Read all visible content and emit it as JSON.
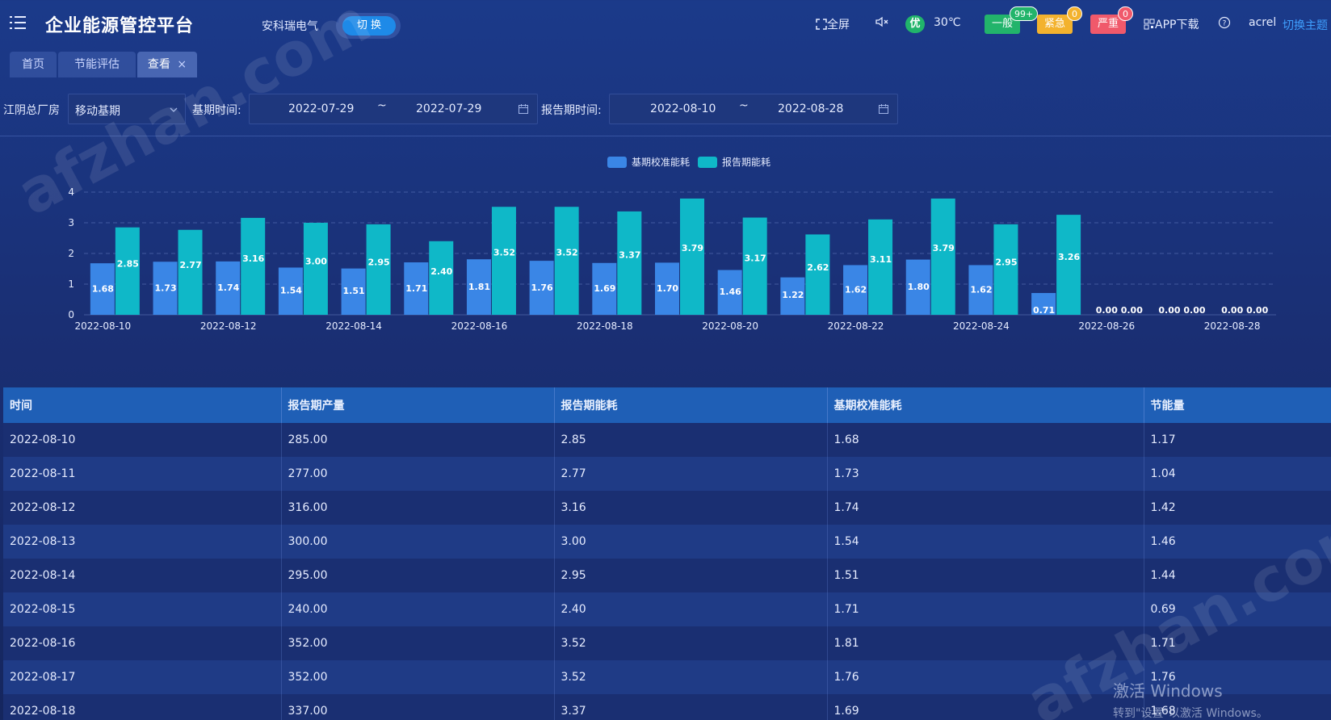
{
  "header": {
    "app_title": "企业能源管控平台",
    "company": "安科瑞电气",
    "switch_label": "切 换",
    "fullscreen_label": "全屏",
    "air_quality": "优",
    "temperature": "30℃",
    "alarms": [
      {
        "label": "一般",
        "count": "99+",
        "color": "#22b46b"
      },
      {
        "label": "紧急",
        "count": "0",
        "color": "#f3b22e"
      },
      {
        "label": "严重",
        "count": "0",
        "color": "#f0596b"
      }
    ],
    "app_download": "APP下载",
    "username": "acrel",
    "theme_switch": "切换主题"
  },
  "tabs": [
    {
      "label": "首页"
    },
    {
      "label": "节能评估"
    },
    {
      "label": "查看",
      "close": "×"
    }
  ],
  "filters": {
    "site_label": "江阴总厂房",
    "mode_value": "移动基期",
    "baseline_label": "基期时间:",
    "baseline_start": "2022-07-29",
    "baseline_end": "2022-07-29",
    "separator": "~",
    "report_label": "报告期时间:",
    "report_start": "2022-08-10",
    "report_end": "2022-08-28"
  },
  "chart_data": {
    "type": "bar",
    "legend_position": "top-center",
    "ylim": [
      0,
      4
    ],
    "yticks": [
      0,
      1,
      2,
      3,
      4
    ],
    "categories": [
      "2022-08-10",
      "2022-08-11",
      "2022-08-12",
      "2022-08-13",
      "2022-08-14",
      "2022-08-15",
      "2022-08-16",
      "2022-08-17",
      "2022-08-18",
      "2022-08-19",
      "2022-08-20",
      "2022-08-21",
      "2022-08-22",
      "2022-08-23",
      "2022-08-24",
      "2022-08-25",
      "2022-08-26",
      "2022-08-27",
      "2022-08-28"
    ],
    "xtick_labels": [
      "2022-08-10",
      "2022-08-12",
      "2022-08-14",
      "2022-08-16",
      "2022-08-18",
      "2022-08-20",
      "2022-08-22",
      "2022-08-24",
      "2022-08-26",
      "2022-08-28"
    ],
    "series": [
      {
        "name": "基期校准能耗",
        "color": "#3a86e6",
        "values": [
          1.68,
          1.73,
          1.74,
          1.54,
          1.51,
          1.71,
          1.81,
          1.76,
          1.69,
          1.7,
          1.46,
          1.22,
          1.62,
          1.8,
          1.62,
          0.71,
          0.0,
          0.0,
          0.0
        ]
      },
      {
        "name": "报告期能耗",
        "color": "#0fb8c8",
        "values": [
          2.85,
          2.77,
          3.16,
          3.0,
          2.95,
          2.4,
          3.52,
          3.52,
          3.37,
          3.79,
          3.17,
          2.62,
          3.11,
          3.79,
          2.95,
          3.26,
          0.0,
          0.0,
          0.0
        ]
      }
    ]
  },
  "table": {
    "columns": [
      "时间",
      "报告期产量",
      "报告期能耗",
      "基期校准能耗",
      "节能量"
    ],
    "rows": [
      [
        "2022-08-10",
        "285.00",
        "2.85",
        "1.68",
        "1.17"
      ],
      [
        "2022-08-11",
        "277.00",
        "2.77",
        "1.73",
        "1.04"
      ],
      [
        "2022-08-12",
        "316.00",
        "3.16",
        "1.74",
        "1.42"
      ],
      [
        "2022-08-13",
        "300.00",
        "3.00",
        "1.54",
        "1.46"
      ],
      [
        "2022-08-14",
        "295.00",
        "2.95",
        "1.51",
        "1.44"
      ],
      [
        "2022-08-15",
        "240.00",
        "2.40",
        "1.71",
        "0.69"
      ],
      [
        "2022-08-16",
        "352.00",
        "3.52",
        "1.81",
        "1.71"
      ],
      [
        "2022-08-17",
        "352.00",
        "3.52",
        "1.76",
        "1.76"
      ],
      [
        "2022-08-18",
        "337.00",
        "3.37",
        "1.69",
        "1.68"
      ]
    ]
  },
  "watermarks": [
    "afzhan.com",
    "afzhan.com"
  ],
  "windows_activation": {
    "line1": "激活 Windows",
    "line2": "转到\"设置\"以激活 Windows。"
  }
}
